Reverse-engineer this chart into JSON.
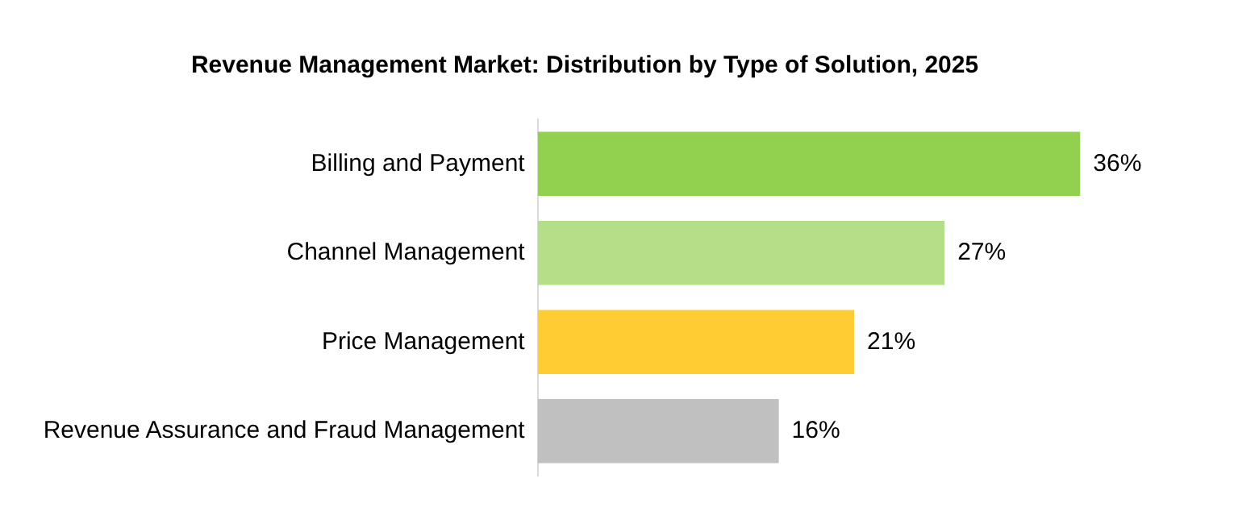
{
  "chart_data": {
    "type": "bar",
    "orientation": "horizontal",
    "title": "Revenue Management Market: Distribution by Type of Solution, 2025",
    "categories": [
      "Billing and Payment",
      "Channel Management",
      "Price Management",
      "Revenue Assurance and Fraud Management"
    ],
    "values": [
      36,
      27,
      21,
      16
    ],
    "colors": [
      "#92d050",
      "#b4de88",
      "#ffcc33",
      "#c0c0c0"
    ],
    "value_labels": [
      "36%",
      "27%",
      "21%",
      "16%"
    ],
    "grid": false,
    "legend": false
  }
}
